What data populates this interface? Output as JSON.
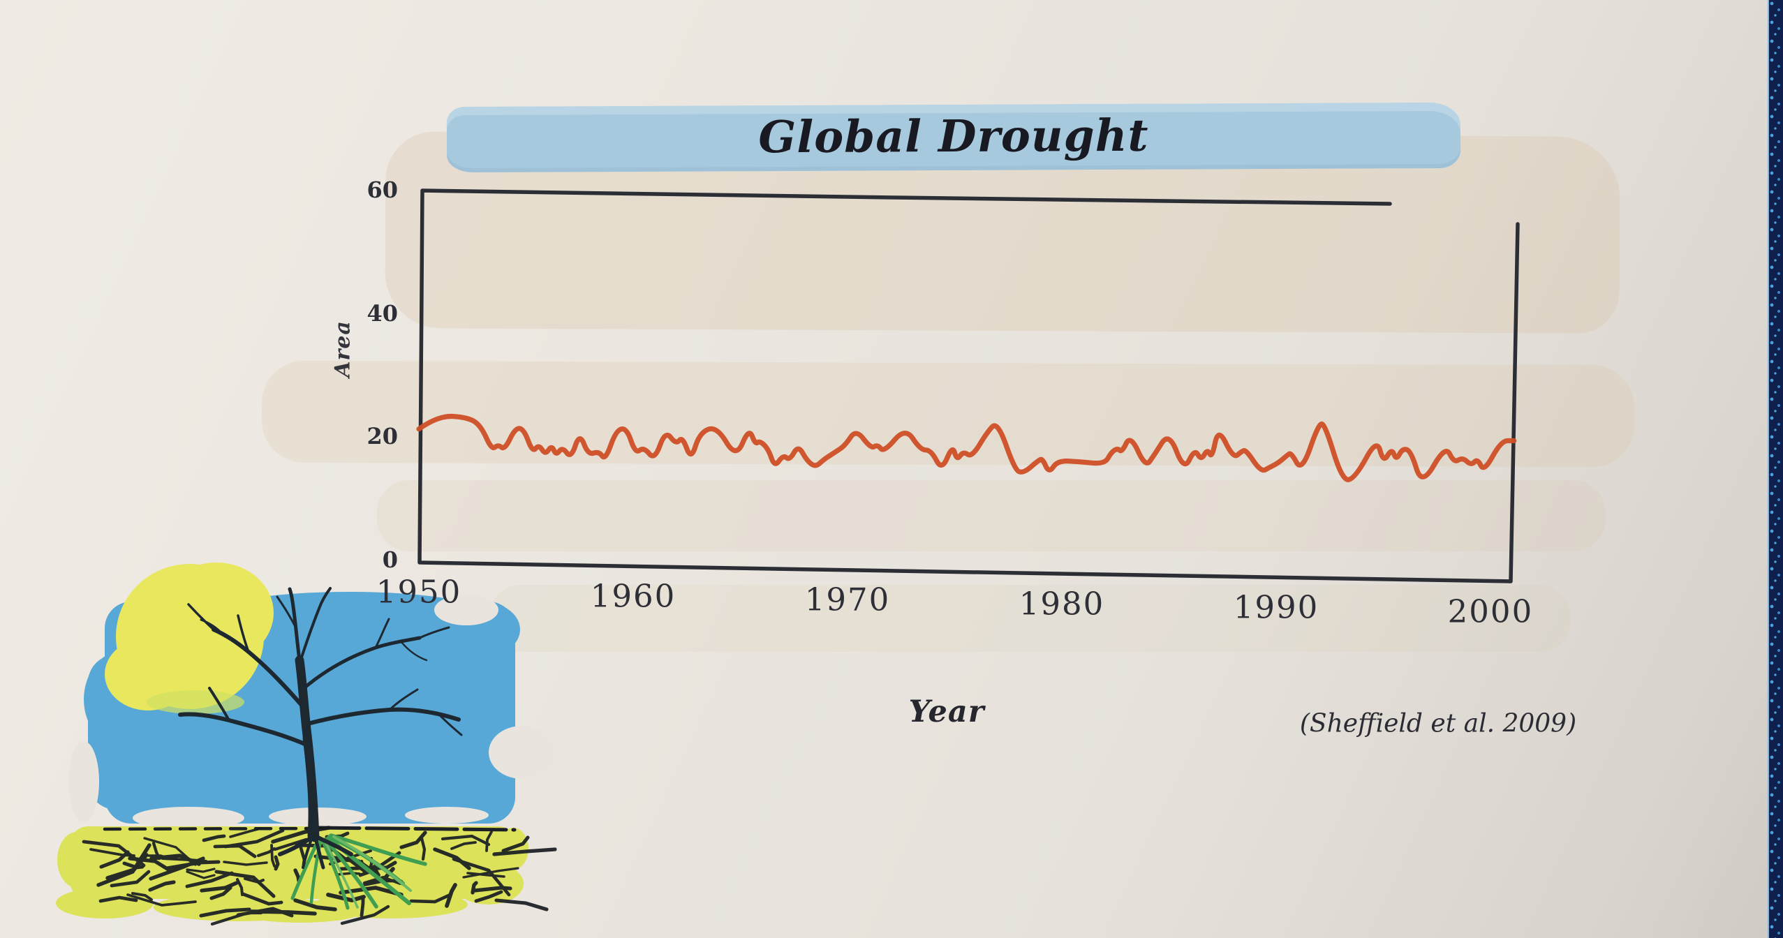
{
  "chart_data": {
    "type": "line",
    "title": "Global Drought",
    "xlabel": "Year",
    "ylabel": "Area",
    "citation": "(Sheffield et al. 2009)",
    "x_ticks": [
      "1950",
      "1960",
      "1970",
      "1980",
      "1990",
      "2000"
    ],
    "y_ticks": [
      "0",
      "20",
      "40",
      "60"
    ],
    "xlim": [
      1950,
      2001.5
    ],
    "ylim": [
      0,
      60
    ],
    "grid": false,
    "legend": "none",
    "line_color": "#cf5029",
    "frame_color": "#2b2e34",
    "series": [
      {
        "points": [
          [
            1950.0,
            21.2
          ],
          [
            1950.9,
            23.4
          ],
          [
            1952.3,
            23.1
          ],
          [
            1952.9,
            21.7
          ],
          [
            1953.4,
            17.8
          ],
          [
            1953.7,
            18.7
          ],
          [
            1954.0,
            17.8
          ],
          [
            1954.5,
            21.4
          ],
          [
            1954.9,
            21.2
          ],
          [
            1955.3,
            17.4
          ],
          [
            1955.6,
            18.7
          ],
          [
            1955.9,
            17.0
          ],
          [
            1956.2,
            18.6
          ],
          [
            1956.4,
            16.9
          ],
          [
            1956.7,
            18.3
          ],
          [
            1957.1,
            16.4
          ],
          [
            1957.5,
            20.6
          ],
          [
            1957.9,
            17.0
          ],
          [
            1958.4,
            17.6
          ],
          [
            1958.7,
            16.1
          ],
          [
            1959.2,
            21.0
          ],
          [
            1959.7,
            21.4
          ],
          [
            1960.1,
            17.2
          ],
          [
            1960.5,
            18.3
          ],
          [
            1961.0,
            16.1
          ],
          [
            1961.5,
            21.0
          ],
          [
            1962.0,
            18.7
          ],
          [
            1962.3,
            20.0
          ],
          [
            1962.7,
            16.1
          ],
          [
            1963.1,
            20.6
          ],
          [
            1963.9,
            21.7
          ],
          [
            1964.8,
            16.4
          ],
          [
            1965.4,
            21.4
          ],
          [
            1965.7,
            18.7
          ],
          [
            1965.9,
            19.3
          ],
          [
            1966.3,
            18.0
          ],
          [
            1966.6,
            15.0
          ],
          [
            1967.0,
            17.0
          ],
          [
            1967.3,
            16.1
          ],
          [
            1967.7,
            18.6
          ],
          [
            1968.1,
            16.1
          ],
          [
            1968.5,
            15.0
          ],
          [
            1968.9,
            16.3
          ],
          [
            1969.5,
            17.6
          ],
          [
            1969.9,
            18.6
          ],
          [
            1970.4,
            21.2
          ],
          [
            1971.1,
            18.0
          ],
          [
            1971.4,
            18.7
          ],
          [
            1971.7,
            17.4
          ],
          [
            1972.7,
            21.5
          ],
          [
            1973.4,
            17.8
          ],
          [
            1973.9,
            17.8
          ],
          [
            1974.4,
            14.4
          ],
          [
            1974.9,
            18.6
          ],
          [
            1975.1,
            16.1
          ],
          [
            1975.4,
            17.6
          ],
          [
            1975.8,
            16.6
          ],
          [
            1976.5,
            20.6
          ],
          [
            1977.0,
            22.5
          ],
          [
            1977.8,
            14.6
          ],
          [
            1978.2,
            14.0
          ],
          [
            1978.9,
            16.1
          ],
          [
            1979.1,
            16.4
          ],
          [
            1979.4,
            14.0
          ],
          [
            1979.8,
            16.1
          ],
          [
            1980.8,
            15.9
          ],
          [
            1982.0,
            15.5
          ],
          [
            1982.3,
            17.4
          ],
          [
            1982.6,
            18.1
          ],
          [
            1982.8,
            17.4
          ],
          [
            1983.2,
            20.3
          ],
          [
            1983.9,
            15.0
          ],
          [
            1984.3,
            16.9
          ],
          [
            1985.0,
            20.8
          ],
          [
            1985.7,
            14.4
          ],
          [
            1986.2,
            18.0
          ],
          [
            1986.5,
            16.1
          ],
          [
            1986.8,
            18.0
          ],
          [
            1987.0,
            16.4
          ],
          [
            1987.3,
            21.5
          ],
          [
            1988.0,
            16.4
          ],
          [
            1988.4,
            17.6
          ],
          [
            1988.6,
            17.8
          ],
          [
            1989.3,
            14.2
          ],
          [
            1989.7,
            15.0
          ],
          [
            1990.1,
            15.7
          ],
          [
            1990.5,
            16.9
          ],
          [
            1990.7,
            17.4
          ],
          [
            1991.2,
            14.2
          ],
          [
            1992.0,
            22.3
          ],
          [
            1992.3,
            21.7
          ],
          [
            1993.1,
            12.7
          ],
          [
            1993.7,
            13.3
          ],
          [
            1994.7,
            19.7
          ],
          [
            1995.0,
            15.7
          ],
          [
            1995.4,
            18.1
          ],
          [
            1995.6,
            16.1
          ],
          [
            1995.9,
            18.1
          ],
          [
            1996.3,
            17.6
          ],
          [
            1996.8,
            11.9
          ],
          [
            1997.9,
            18.6
          ],
          [
            1998.3,
            15.7
          ],
          [
            1998.7,
            16.6
          ],
          [
            1999.1,
            15.3
          ],
          [
            1999.4,
            16.4
          ],
          [
            1999.7,
            14.2
          ],
          [
            2000.5,
            19.3
          ],
          [
            2001.1,
            19.3
          ]
        ]
      }
    ]
  },
  "title_highlight_color": "#a6c9de",
  "illustration": {
    "description": "Dead bare tree on cracked drought-stricken soil under a yellow sun and blue sky",
    "sun_color": "#e9e75d",
    "sky_color": "#57a8d7",
    "ground_color": "#dde25b",
    "ink_color": "#1d2830",
    "grass_color": "#3f9e52"
  },
  "edge_strip": {
    "color": "#10204c",
    "dot_color": "#4aa4e2"
  }
}
